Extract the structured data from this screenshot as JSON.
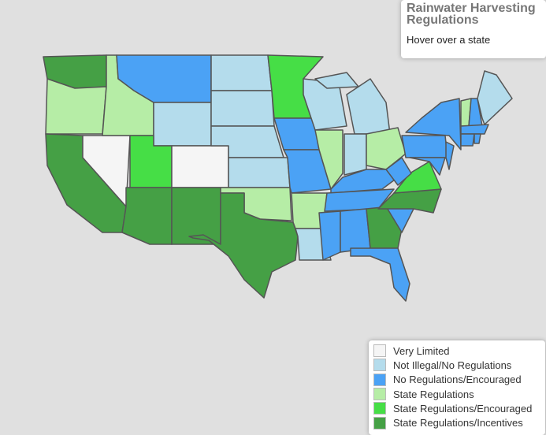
{
  "info": {
    "title": "Rainwater Harvesting Regulations",
    "hint": "Hover over a state"
  },
  "legend": [
    {
      "label": "Very Limited",
      "color": "#f5f5f5"
    },
    {
      "label": "Not Illegal/No Regulations",
      "color": "#b4dcec"
    },
    {
      "label": "No Regulations/Encouraged",
      "color": "#4ba2f5"
    },
    {
      "label": "State Regulations",
      "color": "#b6eda6"
    },
    {
      "label": "State Regulations/Encouraged",
      "color": "#46de46"
    },
    {
      "label": "State Regulations/Incentives",
      "color": "#45a045"
    }
  ]
}
